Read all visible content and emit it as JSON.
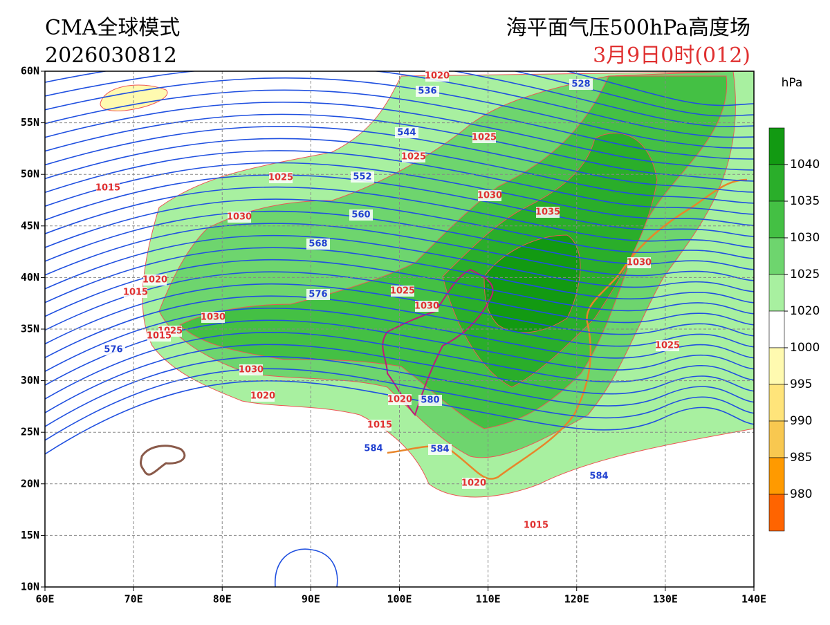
{
  "header": {
    "model": "CMA全球模式",
    "init_time": "2026030812",
    "product": "海平面气压500hPa高度场",
    "valid_time": "3月9日0时(012)"
  },
  "axes": {
    "lat_ticks": [
      {
        "value": 60,
        "label": "60N"
      },
      {
        "value": 55,
        "label": "55N"
      },
      {
        "value": 50,
        "label": "50N"
      },
      {
        "value": 45,
        "label": "45N"
      },
      {
        "value": 40,
        "label": "40N"
      },
      {
        "value": 35,
        "label": "35N"
      },
      {
        "value": 30,
        "label": "30N"
      },
      {
        "value": 25,
        "label": "25N"
      },
      {
        "value": 20,
        "label": "20N"
      },
      {
        "value": 15,
        "label": "15N"
      },
      {
        "value": 10,
        "label": "10N"
      }
    ],
    "lon_ticks": [
      {
        "value": 60,
        "label": "60E"
      },
      {
        "value": 70,
        "label": "70E"
      },
      {
        "value": 80,
        "label": "80E"
      },
      {
        "value": 90,
        "label": "90E"
      },
      {
        "value": 100,
        "label": "100E"
      },
      {
        "value": 110,
        "label": "110E"
      },
      {
        "value": 120,
        "label": "120E"
      },
      {
        "value": 130,
        "label": "130E"
      },
      {
        "value": 140,
        "label": "140E"
      }
    ]
  },
  "colorbar": {
    "unit": "hPa",
    "levels": [
      1040,
      1035,
      1030,
      1025,
      1020,
      1000,
      995,
      990,
      985,
      980
    ],
    "colors": [
      "#129a12",
      "#2aae2a",
      "#44c044",
      "#6ed56e",
      "#a8f0a0",
      "#ffffff",
      "#fffab0",
      "#ffe47a",
      "#f8c850",
      "#ff9a00",
      "#ff6400"
    ]
  },
  "contour_labels": {
    "height": [
      536,
      528,
      544,
      552,
      560,
      568,
      576,
      576,
      580,
      584,
      584,
      584
    ],
    "pressure": [
      1020,
      1025,
      1025,
      1025,
      1015,
      1030,
      1035,
      1030,
      1020,
      1015,
      1030,
      1025,
      1030,
      1030,
      1025,
      1015,
      1025,
      1030,
      1020,
      1020,
      1015,
      1020,
      1015
    ]
  }
}
